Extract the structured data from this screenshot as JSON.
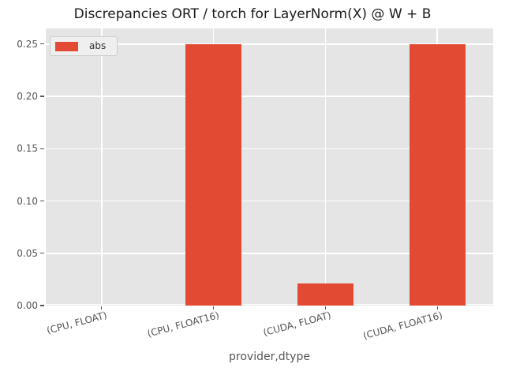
{
  "title": "Discrepancies ORT / torch for LayerNorm(X) @ W + B",
  "x_axis_label": "provider,dtype",
  "legend": {
    "entries": [
      {
        "label": "abs",
        "color": "#E24A33"
      }
    ],
    "position": "upper left"
  },
  "colors": {
    "bar": "#E24A33",
    "plot_background": "#E5E5E5",
    "grid": "#FFFFFF",
    "tick_text": "#555555",
    "title_text": "#1A1A1A",
    "legend_background": "#EFEFEF",
    "legend_border": "#CCCCCC"
  },
  "chart_data": {
    "type": "bar",
    "title": "Discrepancies ORT / torch for LayerNorm(X) @ W + B",
    "categories": [
      "(CPU, FLOAT)",
      "(CPU, FLOAT16)",
      "(CUDA, FLOAT)",
      "(CUDA, FLOAT16)"
    ],
    "series": [
      {
        "name": "abs",
        "values": [
          0.0,
          0.25,
          0.021,
          0.25
        ]
      }
    ],
    "xlabel": "provider,dtype",
    "ylabel": "",
    "ylim": [
      0,
      0.265
    ],
    "yticks": [
      0.0,
      0.05,
      0.1,
      0.15,
      0.2,
      0.25
    ],
    "grid": true,
    "legend_position": "upper left",
    "bar_color": "#E24A33",
    "bar_width_fraction": 0.5,
    "x_tick_rotation_deg": -15,
    "style": "ggplot"
  }
}
